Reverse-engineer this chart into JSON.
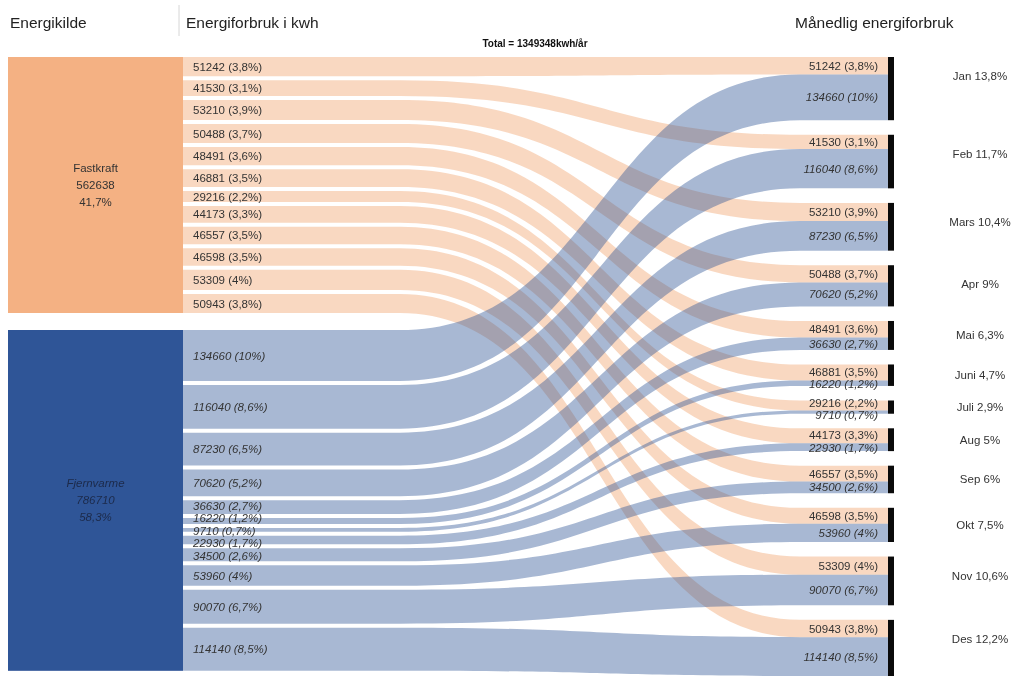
{
  "chart_data": {
    "type": "other",
    "title": "Total = 1349348kwh/år",
    "categories": [
      "Jan 13,8%",
      "Feb 11,7%",
      "Mars 10,4%",
      "Apr 9%",
      "Mai 6,3%",
      "Juni 4,7%",
      "Juli 2,9%",
      "Aug 5%",
      "Sep 6%",
      "Okt 7,5%",
      "Nov 10,6%",
      "Des 12,2%"
    ],
    "series": [
      {
        "name": "Fastkraft",
        "color": "#f4b183",
        "values": [
          51242,
          41530,
          53210,
          50488,
          48491,
          46881,
          29216,
          44173,
          46557,
          46598,
          53309,
          50943
        ],
        "value_labels": [
          "51242 (3,8%)",
          "41530 (3,1%)",
          "53210 (3,9%)",
          "50488 (3,7%)",
          "48491 (3,6%)",
          "46881 (3,5%)",
          "29216 (2,2%)",
          "44173 (3,3%)",
          "46557 (3,5%)",
          "46598 (3,5%)",
          "53309 (4%)",
          "50943 (3,8%)"
        ]
      },
      {
        "name": "Fjernvarme",
        "color": "#2f5597",
        "values": [
          134660,
          116040,
          87230,
          70620,
          36630,
          16220,
          9710,
          22930,
          34500,
          53960,
          90070,
          114140
        ],
        "value_labels": [
          "134660 (10%)",
          "116040 (8,6%)",
          "87230 (6,5%)",
          "70620 (5,2%)",
          "36630 (2,7%)",
          "16220 (1,2%)",
          "9710 (0,7%)",
          "22930 (1,7%)",
          "34500 (2,6%)",
          "53960 (4%)",
          "90070 (6,7%)",
          "114140 (8,5%)"
        ]
      }
    ],
    "annotations": [
      "Energikilde",
      "Energiforbruk i kwh",
      "Månedlig energiforbruk",
      "562638",
      "41,7%",
      "786710",
      "58,3%"
    ]
  }
}
